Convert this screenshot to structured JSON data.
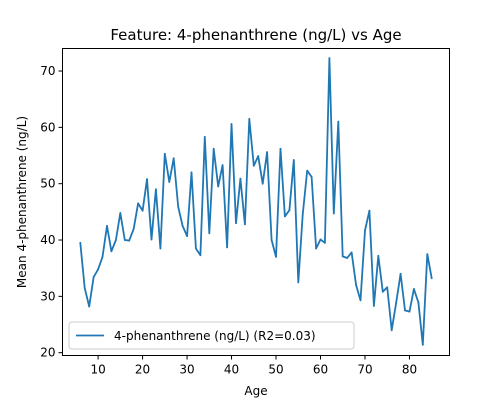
{
  "chart_data": {
    "type": "line",
    "title": "Feature: 4-phenanthrene (ng/L) vs Age",
    "xlabel": "Age",
    "ylabel": "Mean 4-phenanthrene (ng/L)",
    "xlim": [
      2,
      89
    ],
    "ylim": [
      19.5,
      74
    ],
    "xticks": [
      10,
      20,
      30,
      40,
      50,
      60,
      70,
      80
    ],
    "yticks": [
      20,
      30,
      40,
      50,
      60,
      70
    ],
    "grid": false,
    "legend_position": "lower-left",
    "series": [
      {
        "name": "4-phenanthrene (ng/L) (R2=0.03)",
        "color": "#1f77b4",
        "x": [
          6,
          7,
          8,
          9,
          10,
          11,
          12,
          13,
          14,
          15,
          16,
          17,
          18,
          19,
          20,
          21,
          22,
          23,
          24,
          25,
          26,
          27,
          28,
          29,
          30,
          31,
          32,
          33,
          34,
          35,
          36,
          37,
          38,
          39,
          40,
          41,
          42,
          43,
          44,
          45,
          46,
          47,
          48,
          49,
          50,
          51,
          52,
          53,
          54,
          55,
          56,
          57,
          58,
          59,
          60,
          61,
          62,
          63,
          64,
          65,
          66,
          67,
          68,
          69,
          70,
          71,
          72,
          73,
          74,
          75,
          76,
          77,
          78,
          79,
          80,
          81,
          82,
          83,
          84,
          85
        ],
        "y": [
          39.5,
          31.5,
          28.2,
          33.4,
          34.8,
          37.0,
          42.5,
          38.0,
          40.0,
          44.8,
          40.0,
          39.9,
          42.0,
          46.5,
          45.2,
          50.8,
          40.1,
          49.0,
          38.5,
          55.3,
          50.3,
          54.5,
          45.9,
          42.5,
          40.7,
          52.0,
          38.5,
          37.3,
          58.3,
          41.2,
          56.2,
          49.5,
          53.3,
          38.7,
          60.6,
          43.0,
          50.9,
          42.8,
          61.5,
          53.2,
          54.9,
          50.0,
          55.6,
          40.0,
          37.0,
          56.2,
          44.2,
          45.3,
          54.2,
          32.5,
          44.5,
          52.3,
          51.2,
          38.5,
          40.1,
          39.5,
          72.3,
          44.7,
          61.0,
          37.1,
          36.8,
          37.8,
          32.0,
          29.3,
          41.7,
          45.2,
          28.3,
          37.2,
          30.8,
          31.6,
          24.0,
          28.8,
          34.0,
          27.5,
          27.3,
          31.3,
          28.9,
          21.4,
          37.5,
          33.2
        ]
      }
    ]
  }
}
